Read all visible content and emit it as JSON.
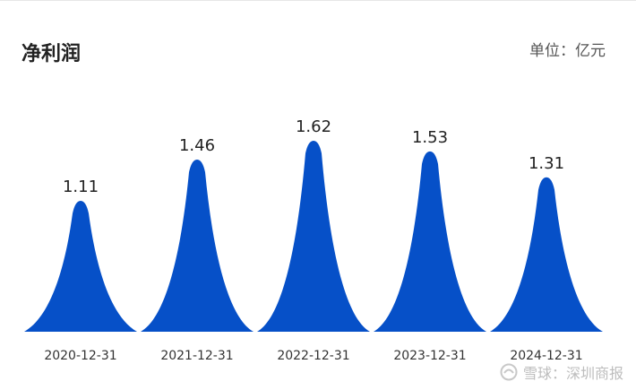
{
  "header": {
    "title": "净利润",
    "unit": "单位：亿元"
  },
  "watermark": {
    "text": "雪球：深圳商报"
  },
  "colors": {
    "bar": "#0650c8"
  },
  "chart_data": {
    "type": "bar",
    "title": "净利润",
    "unit": "亿元",
    "categories": [
      "2020-12-31",
      "2021-12-31",
      "2022-12-31",
      "2023-12-31",
      "2024-12-31"
    ],
    "values": [
      1.11,
      1.46,
      1.62,
      1.53,
      1.31
    ],
    "data_labels": [
      "1.11",
      "1.46",
      "1.62",
      "1.53",
      "1.31"
    ],
    "ylim": [
      0,
      1.62
    ],
    "grid": false,
    "legend": "none",
    "bar_shape": "peak"
  }
}
